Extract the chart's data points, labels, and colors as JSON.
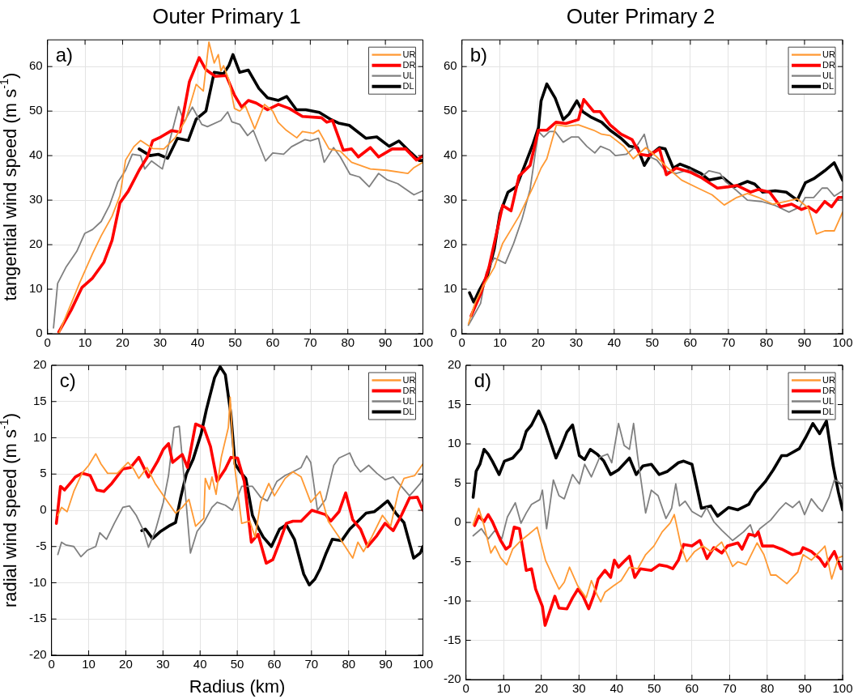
{
  "chart_data": [
    {
      "type": "line",
      "title": "Outer Primary 1",
      "ylabel": "tangential wind speed (m s$^{-1}$)",
      "annotations": [
        "a)"
      ],
      "xlim": [
        0,
        100
      ],
      "ylim": [
        0,
        66
      ],
      "xticks": [
        0,
        10,
        20,
        30,
        40,
        50,
        60,
        70,
        80,
        90,
        100
      ],
      "yticks": [
        0,
        10,
        20,
        30,
        40,
        50,
        60
      ],
      "grid": true,
      "legend": "top right",
      "marker": "none",
      "series": [
        {
          "name": "UR",
          "color": "#ff9933",
          "x": [
            3,
            8.5,
            12,
            14.3,
            17.2,
            19.3,
            20.8,
            23,
            24.8,
            28,
            31,
            34,
            36.8,
            39.6,
            41.5,
            43,
            44.4,
            45.5,
            46.2,
            46.9,
            48.3,
            49.8,
            51.2,
            52.7,
            55.2,
            57.8,
            60,
            61.4,
            63.6,
            66.4,
            67.9,
            70.8,
            72.2,
            75,
            78,
            81,
            86,
            90.4,
            96,
            97.6,
            100
          ],
          "values": [
            0,
            11.3,
            18,
            22,
            26.4,
            31,
            39,
            42,
            43.4,
            41.6,
            41.5,
            44,
            48,
            56,
            54.5,
            65.5,
            60.8,
            62.7,
            59,
            60.2,
            57,
            50.6,
            50,
            51.2,
            46,
            51.5,
            50,
            47.5,
            45.7,
            44,
            45.4,
            45,
            45.7,
            41.5,
            41,
            38.5,
            37,
            36.7,
            36,
            37.3,
            38.5
          ]
        },
        {
          "name": "DR",
          "color": "#ff0000",
          "x": [
            3,
            6.3,
            9.2,
            12,
            15,
            17.2,
            19.3,
            21.5,
            24.4,
            26.6,
            28,
            30.2,
            33,
            35.3,
            37.8,
            40.4,
            42.2,
            44.7,
            47.6,
            49.8,
            51.7,
            53.5,
            55.6,
            58.6,
            61.5,
            64.4,
            67.9,
            73,
            74.4,
            75.9,
            78.8,
            81,
            82.8,
            86,
            88.2,
            91.8,
            95.4,
            98.3,
            100
          ],
          "values": [
            0.4,
            5.3,
            10.4,
            12.5,
            16,
            21,
            29.4,
            32,
            36.7,
            39.7,
            43.3,
            44.2,
            45.6,
            45.3,
            56.6,
            62,
            59.3,
            57.8,
            58,
            53.6,
            50.9,
            52.4,
            51.8,
            50.3,
            51.5,
            50.6,
            48.8,
            48.5,
            47.5,
            47.9,
            41.2,
            41.5,
            39.7,
            41.8,
            39.7,
            41.5,
            41.5,
            39,
            40
          ]
        },
        {
          "name": "UL",
          "color": "#808080",
          "x": [
            1.6,
            2.7,
            4.9,
            7.8,
            9.9,
            12,
            14.3,
            16.5,
            18.7,
            20.8,
            22.6,
            24.8,
            25.9,
            27.7,
            30.6,
            33.1,
            34.9,
            36.4,
            38.6,
            41.1,
            42.6,
            46.2,
            48,
            49.1,
            51.2,
            53.3,
            54.8,
            58.1,
            60,
            62.9,
            65,
            68.6,
            70,
            72.2,
            73.7,
            76.2,
            78,
            80.6,
            83.1,
            85.7,
            88.2,
            90.4,
            93.3,
            97.6,
            100
          ],
          "values": [
            1.3,
            11.3,
            14.9,
            18.5,
            22.5,
            23.4,
            25.2,
            28.8,
            34,
            36.7,
            40.3,
            40,
            37,
            38.8,
            37,
            45.1,
            51,
            47.6,
            50.9,
            47,
            46.5,
            47.9,
            49.8,
            47.6,
            47,
            44.5,
            45.7,
            38.8,
            40.6,
            40.3,
            42,
            43.6,
            43.3,
            43.9,
            38.5,
            41.8,
            39.7,
            35.8,
            35.2,
            33,
            36,
            34.6,
            33.7,
            31.2,
            32.1
          ]
        },
        {
          "name": "DL",
          "color": "#000000",
          "x": [
            24.4,
            27.3,
            29.5,
            32,
            34.6,
            37.5,
            39.6,
            42.2,
            44.4,
            46.9,
            48.3,
            49.4,
            51.2,
            53.5,
            56.3,
            58.6,
            61.5,
            63.7,
            66.3,
            68.8,
            72.4,
            75.3,
            77.5,
            80.4,
            84.8,
            87.7,
            91,
            93.6,
            96.5,
            99,
            100
          ],
          "values": [
            41.5,
            40,
            40.3,
            39.4,
            43.9,
            43.4,
            48.2,
            50,
            58.7,
            58.4,
            60.2,
            62.7,
            58.7,
            59.2,
            55.1,
            53,
            52.4,
            53.3,
            50.3,
            50.3,
            49.7,
            48.2,
            47.3,
            46.8,
            43.9,
            44.2,
            42.1,
            43.3,
            40.9,
            38.9,
            38.9
          ]
        }
      ]
    },
    {
      "type": "line",
      "title": "Outer Primary 2",
      "annotations": [
        "b)"
      ],
      "xlim": [
        0,
        100
      ],
      "ylim": [
        0,
        66
      ],
      "xticks": [
        0,
        10,
        20,
        30,
        40,
        50,
        60,
        70,
        80,
        90,
        100
      ],
      "yticks": [
        0,
        10,
        20,
        30,
        40,
        50,
        60
      ],
      "grid": true,
      "legend": "top right",
      "marker": "none",
      "series": [
        {
          "name": "UR",
          "color": "#ff9933",
          "x": [
            1.7,
            3.5,
            5.6,
            8.5,
            10.7,
            12.9,
            15,
            18.7,
            20.8,
            22.3,
            24.8,
            27.3,
            30.6,
            34.6,
            36.7,
            38.9,
            42.5,
            45,
            48.3,
            51.2,
            54.1,
            57.7,
            62,
            65.7,
            68.9,
            72.2,
            75,
            77.9,
            81.6,
            85.2,
            88.1,
            91,
            93.1,
            95.3,
            97.8,
            100
          ],
          "values": [
            2.2,
            7,
            10.7,
            14.9,
            20.3,
            23.4,
            26.4,
            33,
            37.2,
            39.3,
            46.9,
            46.6,
            46.9,
            45.7,
            44.8,
            44.5,
            42.1,
            39.3,
            41.8,
            39.7,
            37.2,
            34.5,
            32.7,
            31.2,
            28.9,
            30.6,
            31.5,
            30.6,
            29.1,
            29.7,
            30.3,
            28.2,
            22.4,
            23.1,
            23.1,
            27.3
          ]
        },
        {
          "name": "DR",
          "color": "#ff0000",
          "x": [
            2.4,
            4.9,
            7.1,
            9.3,
            10.7,
            12.9,
            15,
            17.9,
            20.1,
            22.3,
            24.7,
            27.3,
            30.6,
            32,
            34.6,
            36.3,
            38.9,
            41.8,
            44.7,
            46.8,
            49,
            51.9,
            53.7,
            56.3,
            59.9,
            62.8,
            67.1,
            70,
            72.2,
            75.8,
            77.9,
            80.8,
            83.7,
            86.6,
            89.2,
            91,
            93.1,
            95.3,
            97.1,
            98.9,
            100
          ],
          "values": [
            4,
            8.9,
            14.9,
            23.4,
            28.8,
            27.6,
            35.4,
            37.8,
            45.7,
            45.7,
            47.5,
            47.2,
            48.1,
            52.6,
            49.9,
            49.9,
            46.9,
            44.8,
            43.6,
            40.3,
            40,
            41.5,
            35.7,
            37.2,
            36.3,
            35.1,
            32.7,
            33,
            33.3,
            31.8,
            32.4,
            31.8,
            28.5,
            29.1,
            27.9,
            28.5,
            27.3,
            29.7,
            28.5,
            30.6,
            30.6
          ]
        },
        {
          "name": "UL",
          "color": "#808080",
          "x": [
            1.7,
            2.7,
            4.9,
            6.4,
            8.5,
            11.4,
            13.6,
            15.8,
            17.9,
            20.1,
            21.5,
            23,
            24.5,
            26.6,
            28.8,
            30.6,
            32.8,
            34.9,
            36.4,
            38.9,
            40.3,
            43.2,
            46.1,
            47.9,
            49.4,
            51.2,
            53.4,
            56.3,
            59.9,
            62.8,
            64.9,
            67.8,
            69.2,
            72.2,
            75,
            78.7,
            82.3,
            85.9,
            88.8,
            90.2,
            92.4,
            94.6,
            96,
            97.8,
            100
          ],
          "values": [
            1.9,
            3.4,
            6.8,
            13.7,
            17,
            15.8,
            20.3,
            25.8,
            32.4,
            45.4,
            44.2,
            45.4,
            45.4,
            43,
            44.2,
            44.2,
            42.1,
            40.6,
            42.1,
            41.2,
            40,
            40.3,
            42.4,
            44.8,
            39.7,
            39,
            36.6,
            36,
            36.9,
            35.1,
            36.6,
            36,
            34.2,
            32.1,
            30,
            29.7,
            28.8,
            27.3,
            28.5,
            30.6,
            30.6,
            32.7,
            32.7,
            30.9,
            32.1
          ]
        },
        {
          "name": "DL",
          "color": "#000000",
          "x": [
            2,
            3.1,
            4.6,
            6.7,
            8.5,
            10,
            12.1,
            14.3,
            16.5,
            18.7,
            20.1,
            20.8,
            22.3,
            24.5,
            26.6,
            28.1,
            30.2,
            31.7,
            33.8,
            36.7,
            38.9,
            41.8,
            44,
            46.1,
            47.9,
            49.7,
            51.9,
            53.4,
            55.5,
            57.3,
            59.9,
            62.8,
            64.9,
            68.5,
            71.5,
            75,
            76.9,
            79,
            82.3,
            85.2,
            88.1,
            90.2,
            92.4,
            95.3,
            97.8,
            100
          ],
          "values": [
            9.2,
            7.1,
            9.8,
            13.1,
            19.1,
            27,
            31.8,
            33,
            37.8,
            42.7,
            46.3,
            52.3,
            56.1,
            52.9,
            48.1,
            49.3,
            52.3,
            49.9,
            48.7,
            47.5,
            45.7,
            43.9,
            42.1,
            41.8,
            37.8,
            40.3,
            41.8,
            41.5,
            37.2,
            38.1,
            37.2,
            36,
            34.5,
            35.1,
            33,
            34.2,
            33.6,
            31.8,
            32.1,
            31.8,
            30,
            33.9,
            34.8,
            36.6,
            38.4,
            34.5
          ]
        }
      ]
    },
    {
      "type": "line",
      "ylabel": "radial wind speed (m s$^{-1}$)",
      "xlabel": "Radius (km)",
      "annotations": [
        "c)"
      ],
      "xlim": [
        0,
        100
      ],
      "ylim": [
        -20,
        20
      ],
      "xticks": [
        0,
        10,
        20,
        30,
        40,
        50,
        60,
        70,
        80,
        90,
        100
      ],
      "yticks": [
        -20,
        -15,
        -10,
        -5,
        0,
        5,
        10,
        15,
        20
      ],
      "grid": true,
      "legend": "top right",
      "marker": "none",
      "series": [
        {
          "name": "UR",
          "color": "#ff9933",
          "x": [
            1.7,
            2.7,
            4.2,
            6,
            8.2,
            10,
            11.9,
            13.3,
            15.1,
            17.7,
            20.6,
            22.1,
            23.5,
            25.7,
            27.9,
            30.8,
            33.4,
            35.2,
            37,
            38.8,
            41,
            41.4,
            42.5,
            43.2,
            44.3,
            45.7,
            47.6,
            48.1,
            49,
            51.2,
            53.4,
            54.8,
            56.3,
            58.5,
            60,
            62.9,
            65,
            67.2,
            69.8,
            72.3,
            74.5,
            77.4,
            81.1,
            82.5,
            84,
            86.2,
            89.1,
            91.3,
            93.4,
            94.9,
            97.8,
            100
          ],
          "values": [
            -0.7,
            0.4,
            -0.2,
            2.6,
            5.1,
            6.2,
            7.8,
            6.4,
            5.1,
            5.1,
            6.6,
            5.7,
            4.4,
            5.9,
            3.7,
            1.5,
            -0.4,
            0.4,
            1.5,
            -2.2,
            -1.1,
            4.4,
            2.9,
            4.6,
            2.2,
            7.3,
            11.4,
            15.6,
            7.3,
            -1.8,
            -1.5,
            -3.7,
            1.1,
            3.7,
            2,
            4.4,
            5.3,
            4.6,
            1.1,
            2.6,
            -1.5,
            -3.7,
            -6.6,
            -4.4,
            -5.7,
            -3.7,
            -0.7,
            -2.2,
            2.6,
            4.4,
            4.8,
            6.4
          ]
        },
        {
          "name": "DR",
          "color": "#ff0000",
          "x": [
            1.3,
            2.4,
            3.5,
            5.3,
            6.4,
            8.2,
            10.4,
            12.2,
            14.1,
            16.2,
            19.2,
            21.3,
            23.5,
            26.1,
            28.6,
            30.1,
            31.5,
            32.6,
            35.2,
            36.6,
            38.8,
            41,
            42.8,
            44.6,
            46.8,
            48.3,
            50.1,
            51.9,
            53.8,
            55.6,
            57.8,
            59.6,
            61.4,
            63.2,
            65,
            67.2,
            70.1,
            73.8,
            75.2,
            77.4,
            79.2,
            81.1,
            83.2,
            85.1,
            87.6,
            89.8,
            92,
            94.2,
            96.4,
            98.5,
            100
          ],
          "values": [
            -1.8,
            3.3,
            2.8,
            3.9,
            4.6,
            5.1,
            4.8,
            2.8,
            2.6,
            3.7,
            5.7,
            5.9,
            7.3,
            4.6,
            6.8,
            8.4,
            9.2,
            6.6,
            7.7,
            5.9,
            11.9,
            11.4,
            8.8,
            4,
            5.7,
            7.3,
            7.2,
            4,
            -4.4,
            -3.3,
            -7.3,
            -6.8,
            -4.4,
            -1.8,
            -1.5,
            -1.5,
            0,
            -0.6,
            -1.5,
            -0.2,
            2.4,
            -1.3,
            -2.6,
            -5,
            -3.5,
            -1.8,
            -2.8,
            -0.7,
            1.7,
            1.8,
            0
          ]
        },
        {
          "name": "UL",
          "color": "#808080",
          "x": [
            1.7,
            2.7,
            3.9,
            6,
            7.9,
            9.7,
            11.9,
            13,
            14.8,
            16.9,
            19.2,
            21,
            22.8,
            24.6,
            26.1,
            27.9,
            30.1,
            31.5,
            33,
            34.4,
            35.5,
            37.4,
            39.2,
            41,
            43.2,
            44.6,
            46.8,
            48.7,
            51.2,
            54.1,
            56.3,
            58.1,
            60.7,
            62.9,
            65,
            67.2,
            68.7,
            69.8,
            71.6,
            73.8,
            76,
            77.4,
            80.3,
            81.8,
            83.2,
            85.4,
            87.6,
            89.8,
            92,
            94.9,
            96.4,
            99.3,
            100
          ],
          "values": [
            -6.1,
            -4.4,
            -4.8,
            -5,
            -6.4,
            -5.5,
            -5,
            -3.1,
            -4,
            -1.8,
            0.4,
            0.6,
            -0.7,
            -2.6,
            -5.1,
            -2.9,
            1.1,
            4.8,
            11.4,
            11.6,
            5.5,
            -5.9,
            -2.9,
            -1.7,
            0.4,
            1.1,
            0.7,
            0,
            3.3,
            3.3,
            1.8,
            1.3,
            4,
            4.8,
            5.3,
            5.9,
            7.5,
            6.6,
            0,
            1.5,
            6.2,
            7.2,
            7.9,
            6.2,
            5.3,
            6.2,
            5.1,
            4.2,
            4.6,
            2.9,
            2,
            3.7,
            4.4
          ]
        },
        {
          "name": "DL",
          "color": "#000000",
          "x": [
            24.3,
            25.3,
            27.2,
            29.4,
            31.5,
            33.4,
            34.8,
            36.3,
            38.1,
            40.3,
            41.7,
            43.9,
            45.4,
            46.8,
            48.3,
            49.4,
            50.8,
            52.3,
            54.1,
            55.6,
            57,
            59.2,
            61.4,
            63.2,
            65.4,
            67.9,
            69.4,
            70.9,
            72.3,
            73.8,
            75.6,
            78.1,
            80.3,
            82.5,
            84.7,
            86.9,
            88.4,
            90.5,
            92.7,
            94.9,
            97.5,
            99.3,
            100
          ],
          "values": [
            -2.8,
            -2.6,
            -3.9,
            -2.9,
            -2.2,
            -1.7,
            1.8,
            5,
            7,
            10.6,
            13.9,
            18.3,
            19.8,
            18.7,
            13.2,
            6.4,
            5.3,
            4.4,
            -0.7,
            -2.4,
            -3.7,
            -5,
            -2.6,
            -2,
            -4,
            -8.8,
            -10.3,
            -9.5,
            -8.1,
            -6.1,
            -4,
            -4.2,
            -2.6,
            -1.5,
            -0.4,
            -0.2,
            0.4,
            1.3,
            -0.4,
            -1.7,
            -6.6,
            -5.9,
            -5
          ]
        }
      ]
    },
    {
      "type": "line",
      "annotations": [
        "d)"
      ],
      "xlim": [
        0,
        100
      ],
      "ylim": [
        -20,
        20
      ],
      "xticks": [
        0,
        10,
        20,
        30,
        40,
        50,
        60,
        70,
        80,
        90,
        100
      ],
      "yticks": [
        -20,
        -15,
        -10,
        -5,
        0,
        5,
        10,
        15,
        20
      ],
      "grid": true,
      "legend": "top right",
      "marker": "none",
      "series": [
        {
          "name": "UR",
          "color": "#ff9933",
          "x": [
            1.9,
            3.4,
            4.8,
            6.6,
            7.7,
            9.2,
            10.8,
            12.4,
            14.6,
            16.7,
            18.9,
            21.1,
            23.2,
            24.7,
            26.1,
            27.5,
            29.7,
            31.9,
            33.3,
            34.8,
            35.8,
            36.9,
            39.1,
            41.2,
            43.4,
            45.6,
            47.7,
            49.9,
            52.1,
            54.2,
            55.3,
            57.1,
            58.6,
            60.7,
            62.9,
            65,
            67.9,
            70.8,
            72.2,
            74.4,
            77.3,
            79.1,
            80.9,
            82.3,
            85.2,
            88.1,
            89.5,
            91.7,
            94.6,
            95.3,
            97.1,
            98.9,
            100
          ],
          "values": [
            -0.3,
            1.8,
            -0.4,
            -3.9,
            -3,
            -4.5,
            -5.4,
            -3.4,
            -2.3,
            -1.5,
            -0.6,
            -4.8,
            -7,
            -8.5,
            -7.6,
            -5.7,
            -8.1,
            -9.6,
            -7.4,
            -9.2,
            -10.1,
            -8.9,
            -8.1,
            -7.4,
            -5.7,
            -5.9,
            -4.1,
            -3,
            -1.2,
            -0.1,
            1,
            -3,
            -5,
            -3.7,
            -3,
            -3.7,
            -2.5,
            -5.6,
            -5,
            -5.4,
            -2.6,
            -4.1,
            -6.7,
            -6.7,
            -7.8,
            -6.3,
            -4.1,
            -4.8,
            -3.4,
            -3,
            -7.2,
            -4.5,
            -4.3
          ]
        },
        {
          "name": "DR",
          "color": "#ff0000",
          "x": [
            2.3,
            3.4,
            4.8,
            5.9,
            7,
            9.2,
            10.6,
            11.7,
            12.8,
            14.2,
            16,
            17.4,
            18.5,
            20.3,
            21,
            22.5,
            23.6,
            24.7,
            26.8,
            28.3,
            29.7,
            31.1,
            32.6,
            34,
            35.1,
            36.9,
            38.4,
            39.4,
            40.5,
            41.9,
            43.4,
            44.8,
            46.3,
            49.2,
            51.3,
            53.5,
            54.9,
            56.4,
            57.8,
            60,
            62.1,
            64,
            65.8,
            67.9,
            69.4,
            72.2,
            73.3,
            75.1,
            76.9,
            77.6,
            78.7,
            81.6,
            83.8,
            86.7,
            88.8,
            89.5,
            91.7,
            93.9,
            95.3,
            97.8,
            99.6
          ],
          "values": [
            -0.4,
            0.8,
            0.1,
            1,
            0.1,
            -2.3,
            -3.4,
            -3,
            -0.6,
            -0.8,
            -6.1,
            -5.9,
            -8.5,
            -10.7,
            -13.1,
            -11,
            -9.4,
            -10.9,
            -11,
            -9.6,
            -8.5,
            -9.4,
            -11,
            -9.2,
            -7.2,
            -6.1,
            -7,
            -4.8,
            -5.7,
            -5,
            -4.3,
            -7,
            -5.9,
            -6.1,
            -5.4,
            -5.6,
            -5.9,
            -4.8,
            -2.8,
            -3,
            -2.3,
            -4.6,
            -3.2,
            -3.9,
            -3,
            -2.6,
            -3.4,
            -1.5,
            -1.7,
            -1.2,
            -3,
            -3,
            -3.4,
            -4.1,
            -3.9,
            -3.2,
            -3.7,
            -4.6,
            -5.6,
            -3.7,
            -5.9
          ]
        },
        {
          "name": "UL",
          "color": "#808080",
          "x": [
            1.9,
            4.1,
            5.9,
            7.7,
            9.5,
            11,
            13.1,
            14.6,
            16,
            17.4,
            19.6,
            20.3,
            21.4,
            23.2,
            24.7,
            26.1,
            28.3,
            30.1,
            31.5,
            33.3,
            35.5,
            37.6,
            38.7,
            40.5,
            42,
            43.4,
            44.5,
            45.6,
            47.7,
            49.2,
            51,
            53.1,
            54.6,
            55.7,
            56.7,
            58.2,
            60,
            62.5,
            63.9,
            65.8,
            67.9,
            70.8,
            73.7,
            75.5,
            76.6,
            78,
            80.9,
            83.1,
            84.9,
            86.7,
            88.5,
            89.9,
            91.7,
            93.5,
            94.6,
            96.4,
            97.8,
            98.9,
            100
          ],
          "values": [
            -1.7,
            -0.8,
            -2.1,
            -1,
            -2.1,
            0.7,
            2.5,
            -0.1,
            1.2,
            2.3,
            2.9,
            4.1,
            -0.8,
            5.4,
            3.4,
            3,
            6.1,
            4.9,
            7.4,
            5.8,
            8.3,
            8.7,
            7.6,
            12.6,
            9.8,
            9.3,
            12.6,
            8.3,
            1.2,
            4.1,
            3.4,
            0.5,
            1.8,
            4.9,
            2.1,
            2.7,
            1.4,
            0.7,
            1.9,
            0.1,
            -1,
            -2.3,
            -1.2,
            -0.3,
            -1.9,
            -0.8,
            0.3,
            1.6,
            2.5,
            1.9,
            2.7,
            1,
            3,
            1.9,
            1.4,
            3.2,
            5.4,
            5.2,
            4.3
          ]
        },
        {
          "name": "DL",
          "color": "#000000",
          "x": [
            1.9,
            2.7,
            3.7,
            4.8,
            5.9,
            7,
            8.8,
            10.2,
            12.4,
            14.6,
            16,
            17.4,
            19.3,
            21,
            22.5,
            23.9,
            25.4,
            26.8,
            28.3,
            30.1,
            31.5,
            33,
            34.8,
            36.6,
            38.4,
            40.5,
            43.4,
            45.2,
            47,
            49.2,
            51.3,
            53.5,
            56.4,
            57.8,
            60,
            62.5,
            65,
            66.8,
            69.7,
            72.2,
            75.1,
            76.9,
            79.5,
            81.6,
            83.8,
            85.2,
            88.5,
            90.3,
            92.1,
            93.9,
            95.7,
            97.5,
            98.9,
            100
          ],
          "values": [
            3.2,
            6.5,
            7.4,
            9.3,
            8.7,
            7.8,
            6.1,
            7.8,
            8.2,
            9.4,
            11.6,
            12.4,
            14.2,
            12.4,
            10.2,
            8.2,
            9.8,
            11.5,
            12.4,
            8.5,
            8,
            9.3,
            8.7,
            7.8,
            6.1,
            6.7,
            8.2,
            6.1,
            7.2,
            7.4,
            6.1,
            6.5,
            7.6,
            7.8,
            7.4,
            1.8,
            2.1,
            0.8,
            1.9,
            1.6,
            2.3,
            3.8,
            5.2,
            6.7,
            8.5,
            8.5,
            9.4,
            10.9,
            12.6,
            11.3,
            12.9,
            7.2,
            3.8,
            1.6
          ]
        }
      ]
    }
  ]
}
